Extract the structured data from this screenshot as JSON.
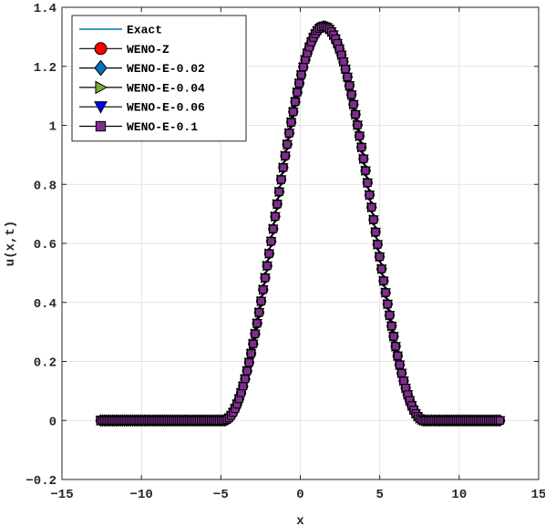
{
  "chart_data": {
    "type": "line",
    "title": "",
    "xlabel": "x",
    "ylabel": "u(x,t)",
    "xlim": [
      -15,
      15
    ],
    "ylim": [
      -0.2,
      1.4
    ],
    "xticks": [
      -15,
      -10,
      -5,
      0,
      5,
      10,
      15
    ],
    "yticks": [
      -0.2,
      0,
      0.2,
      0.4,
      0.6,
      0.8,
      1,
      1.2,
      1.4
    ],
    "xtick_labels": [
      "−15",
      "−10",
      "−5",
      "0",
      "5",
      "10",
      "15"
    ],
    "ytick_labels": [
      "−0.2",
      "0",
      "0.2",
      "0.4",
      "0.6",
      "0.8",
      "1",
      "1.2",
      "1.4"
    ],
    "grid": true,
    "legend_position": "top-left",
    "profile": {
      "x_range": [
        -12.57,
        12.57
      ],
      "num_points": 200,
      "support": [
        -4.8,
        7.8
      ],
      "peak_x": 1.5,
      "peak_y": 1.335
    },
    "series": [
      {
        "name": "Exact",
        "marker": "none",
        "color": "#0072bd"
      },
      {
        "name": "WENO-Z",
        "marker": "circle",
        "color": "#ff0000"
      },
      {
        "name": "WENO-E-0.02",
        "marker": "diamond",
        "color": "#0072bd"
      },
      {
        "name": "WENO-E-0.04",
        "marker": "triangle-right",
        "color": "#77ac30"
      },
      {
        "name": "WENO-E-0.06",
        "marker": "triangle-down",
        "color": "#0000ff"
      },
      {
        "name": "WENO-E-0.1",
        "marker": "square",
        "color": "#7e2f8e"
      }
    ]
  }
}
